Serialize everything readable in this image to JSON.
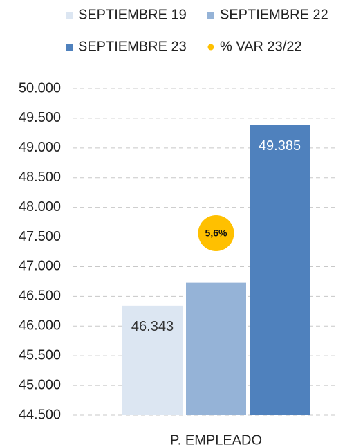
{
  "chart_data": {
    "type": "bar",
    "categories": [
      "P. EMPLEADO"
    ],
    "series": [
      {
        "name": "SEPTIEMBRE 19",
        "color": "#dce6f2",
        "values": [
          46343
        ],
        "value_labels": [
          "46.343"
        ]
      },
      {
        "name": "SEPTIEMBRE 22",
        "color": "#95b3d7",
        "values": [
          46730
        ],
        "value_labels": [
          null
        ]
      },
      {
        "name": "SEPTIEMBRE 23",
        "color": "#4f81bd",
        "values": [
          49385
        ],
        "value_labels": [
          "49.385"
        ]
      },
      {
        "name": "% VAR 23/22",
        "color": "#ffc000",
        "type": "scatter",
        "values": [
          5.6
        ],
        "value_labels": [
          "5,6%"
        ]
      }
    ],
    "ylim": [
      44500,
      50000
    ],
    "yticks": [
      {
        "value": 44500,
        "label": "44.500"
      },
      {
        "value": 45000,
        "label": "45.000"
      },
      {
        "value": 45500,
        "label": "45.500"
      },
      {
        "value": 46000,
        "label": "46.000"
      },
      {
        "value": 46500,
        "label": "46.500"
      },
      {
        "value": 47000,
        "label": "47.000"
      },
      {
        "value": 47500,
        "label": "47.500"
      },
      {
        "value": 48000,
        "label": "48.000"
      },
      {
        "value": 48500,
        "label": "48.500"
      },
      {
        "value": 49000,
        "label": "49.000"
      },
      {
        "value": 49500,
        "label": "49.500"
      },
      {
        "value": 50000,
        "label": "50.000"
      }
    ],
    "grid": true,
    "legend": "top"
  }
}
